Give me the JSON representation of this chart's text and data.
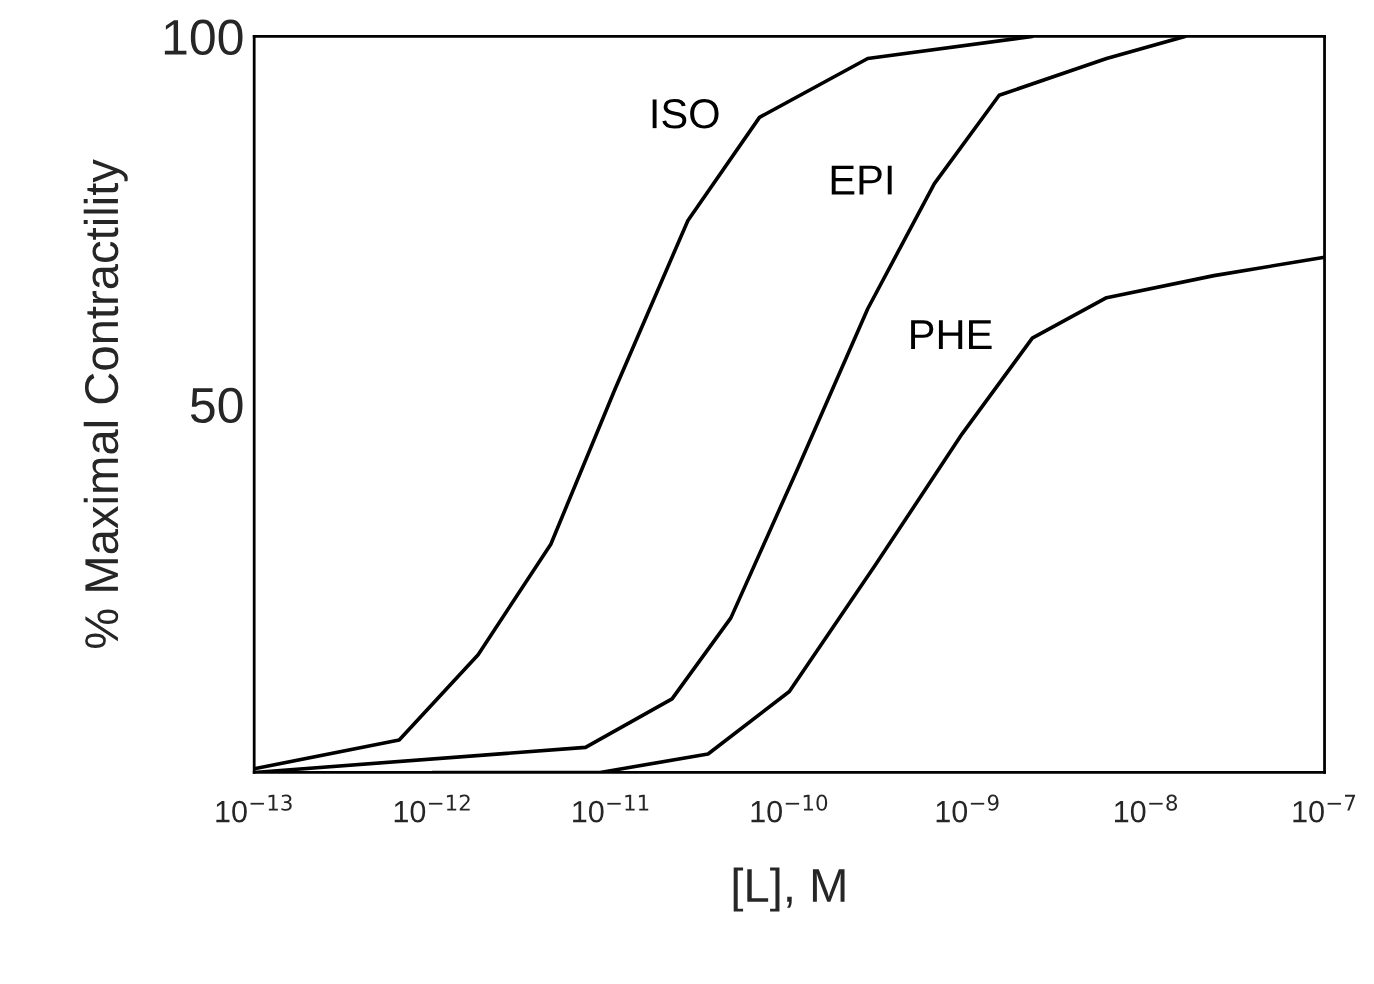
{
  "chart_data": {
    "type": "line",
    "xlabel": "[L], M",
    "ylabel": "% Maximal Contractility",
    "log": "x",
    "grid": false,
    "legend": false,
    "marker": "none",
    "line_style": "solid",
    "xlim": [
      1e-13,
      1e-07
    ],
    "ylim": [
      0,
      100
    ],
    "yticks": [
      50,
      100
    ],
    "xticks": [
      {
        "value": 1e-13,
        "label": "10$^{−13}$"
      },
      {
        "value": 1e-12,
        "label": "10$^{−12}$"
      },
      {
        "value": 1e-11,
        "label": "10$^{−11}$"
      },
      {
        "value": 1e-10,
        "label": "10$^{−10}$"
      },
      {
        "value": 1e-09,
        "label": "10$^{−9}$"
      },
      {
        "value": 1e-08,
        "label": "10$^{−8}$"
      },
      {
        "value": 1e-07,
        "label": "10$^{−7}$"
      }
    ],
    "series": [
      {
        "name": "ISO",
        "color": "#000000",
        "x": [
          1e-13,
          6.5e-13,
          1.8e-12,
          4.6e-12,
          1.05e-11,
          2.7e-11,
          6.8e-11,
          2.75e-10,
          2.3e-09
        ],
        "values": [
          0.5,
          4.4,
          16,
          31,
          52,
          75,
          89,
          97,
          100
        ]
      },
      {
        "name": "EPI",
        "color": "#000000",
        "x": [
          1e-13,
          7.2e-12,
          2.2e-11,
          4.7e-11,
          1.1e-10,
          2.75e-10,
          6.5e-10,
          1.5e-09,
          6e-09,
          1.65e-08
        ],
        "values": [
          0,
          3.4,
          10,
          21,
          41,
          63,
          80,
          92,
          97,
          100
        ]
      },
      {
        "name": "PHE",
        "color": "#000000",
        "x": [
          1e-12,
          8.7e-12,
          3.5e-11,
          1e-10,
          3e-10,
          9.3e-10,
          2.3e-09,
          6e-09,
          2.4e-08,
          1e-07
        ],
        "values": [
          0,
          0,
          2.5,
          11,
          28,
          46,
          59,
          64.5,
          67.5,
          70
        ]
      }
    ]
  }
}
